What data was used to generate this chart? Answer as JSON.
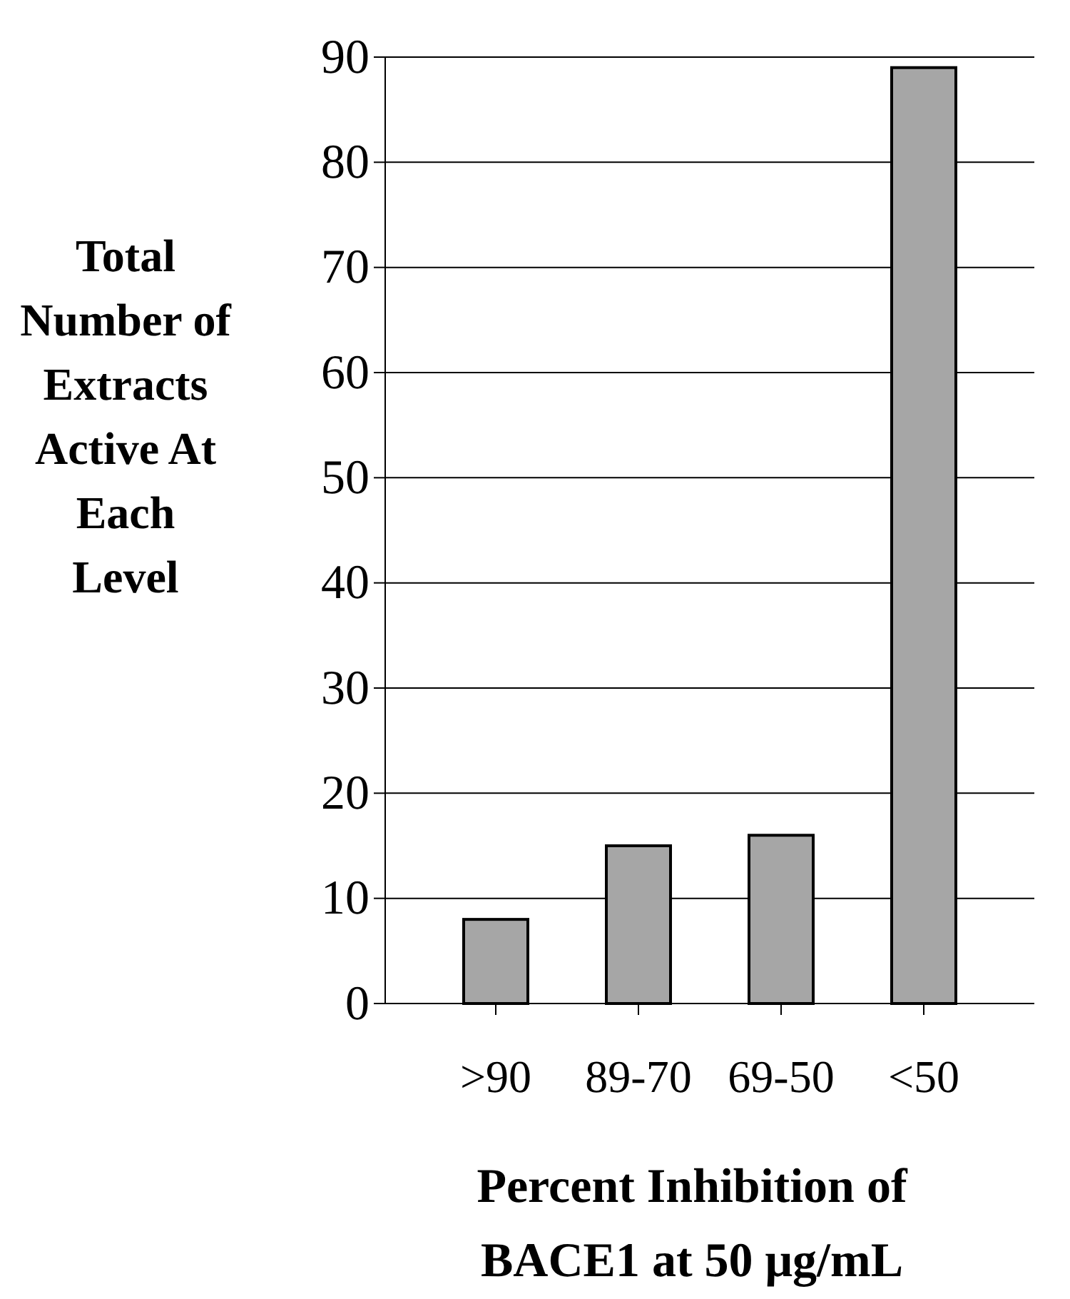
{
  "chart_data": {
    "type": "bar",
    "categories": [
      ">90",
      "89-70",
      "69-50",
      "<50"
    ],
    "values": [
      8,
      15,
      16,
      89
    ],
    "color": "#a6a6a6",
    "ylim": [
      0,
      90
    ],
    "yticks": [
      0,
      10,
      20,
      30,
      40,
      50,
      60,
      70,
      80,
      90
    ],
    "grid": "y",
    "ylabel": "Total Number of Extracts Active At Each Level",
    "xlabel": "Percent Inhibition of BACE1 at 50 μg/mL"
  }
}
